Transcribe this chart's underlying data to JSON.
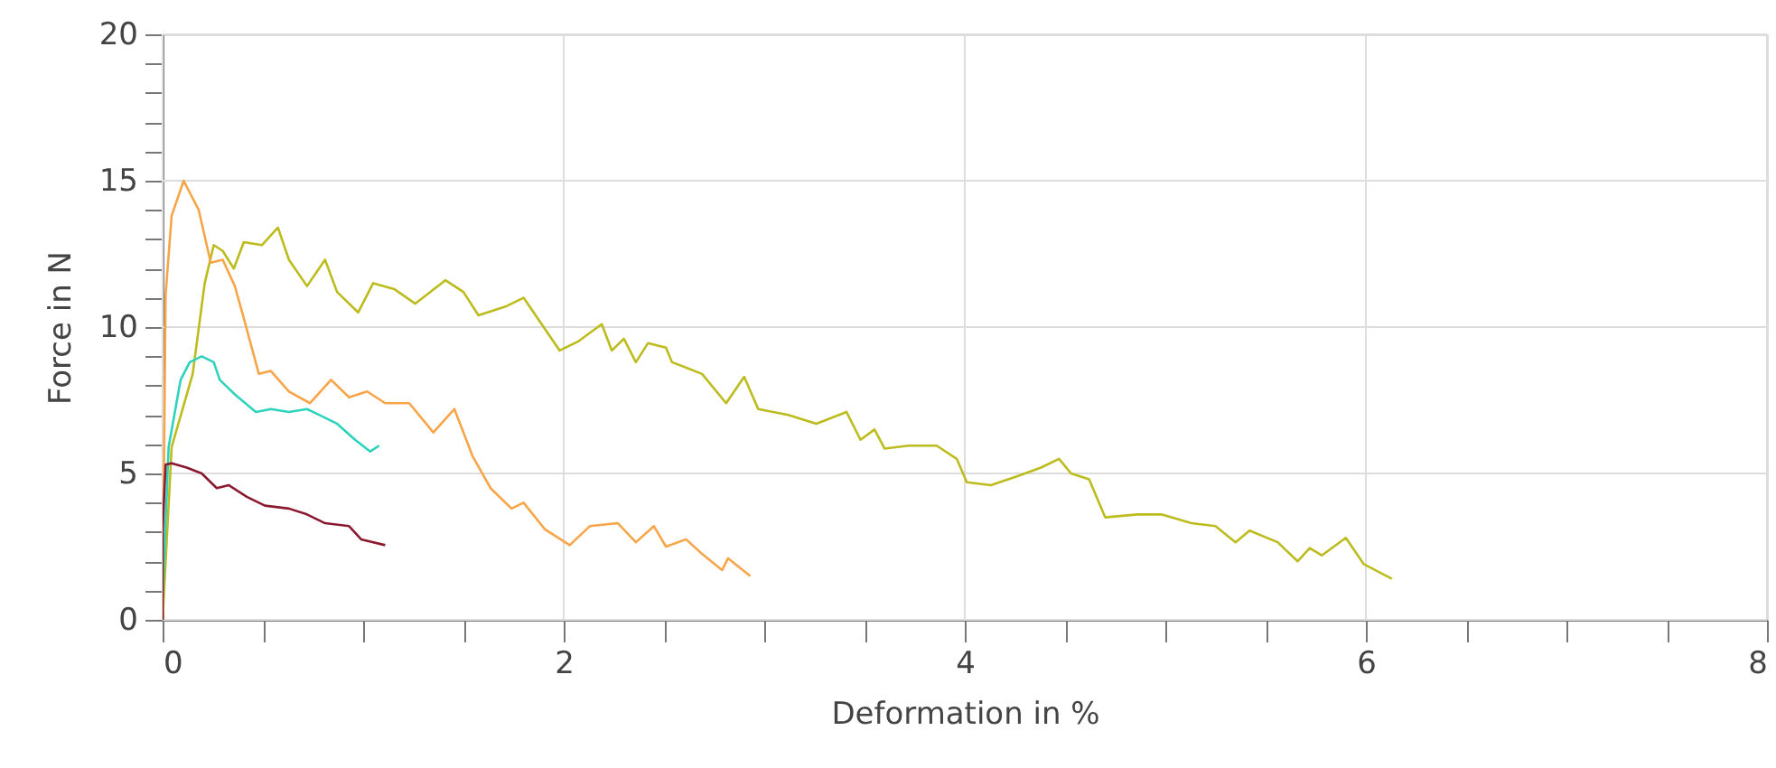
{
  "chart_data": {
    "type": "line",
    "xlabel": "Deformation in %",
    "ylabel": "Force in N",
    "xlim": [
      0,
      8
    ],
    "ylim": [
      0,
      20
    ],
    "xticks": [
      0,
      {
        "value": 0.5,
        "label": null
      },
      {
        "value": 1,
        "label": null
      },
      {
        "value": 1.5,
        "label": null
      },
      2,
      {
        "value": 2.5,
        "label": null
      },
      {
        "value": 3,
        "label": null
      },
      {
        "value": 3.5,
        "label": null
      },
      4,
      {
        "value": 4.5,
        "label": null
      },
      {
        "value": 5,
        "label": null
      },
      {
        "value": 5.5,
        "label": null
      },
      6,
      {
        "value": 6.5,
        "label": null
      },
      {
        "value": 7,
        "label": null
      },
      {
        "value": 7.5,
        "label": null
      },
      8
    ],
    "yticks": [
      0,
      {
        "value": 1,
        "label": null
      },
      {
        "value": 2,
        "label": null
      },
      {
        "value": 3,
        "label": null
      },
      {
        "value": 4,
        "label": null
      },
      5,
      {
        "value": 6,
        "label": null
      },
      {
        "value": 7,
        "label": null
      },
      {
        "value": 8,
        "label": null
      },
      {
        "value": 9,
        "label": null
      },
      10,
      {
        "value": 11,
        "label": null
      },
      {
        "value": 12,
        "label": null
      },
      {
        "value": 13,
        "label": null
      },
      {
        "value": 14,
        "label": null
      },
      15,
      {
        "value": 16,
        "label": null
      },
      {
        "value": 17,
        "label": null
      },
      {
        "value": 18,
        "label": null
      },
      {
        "value": 19,
        "label": null
      },
      20
    ],
    "grid": true,
    "marker": "none",
    "line_style": "solid",
    "series": [
      {
        "color": "#bcbc1e",
        "x": [
          0,
          0.045,
          0.15,
          0.21,
          0.255,
          0.3,
          0.355,
          0.405,
          0.495,
          0.575,
          0.63,
          0.72,
          0.81,
          0.87,
          0.975,
          1.05,
          1.155,
          1.26,
          1.41,
          1.5,
          1.575,
          1.71,
          1.8,
          1.89,
          1.98,
          2.07,
          2.19,
          2.24,
          2.3,
          2.36,
          2.42,
          2.51,
          2.54,
          2.69,
          2.81,
          2.9,
          2.97,
          3.12,
          3.26,
          3.41,
          3.48,
          3.55,
          3.6,
          3.72,
          3.86,
          3.96,
          4.01,
          4.13,
          4.26,
          4.38,
          4.47,
          4.53,
          4.62,
          4.7,
          4.86,
          4.98,
          5.13,
          5.25,
          5.35,
          5.42,
          5.56,
          5.66,
          5.72,
          5.78,
          5.9,
          5.99,
          6.13
        ],
        "values": [
          0,
          5.9,
          8.4,
          11.5,
          12.8,
          12.6,
          12.0,
          12.9,
          12.8,
          13.4,
          12.3,
          11.4,
          12.3,
          11.2,
          10.5,
          11.5,
          11.3,
          10.8,
          11.6,
          11.2,
          10.4,
          10.7,
          11.0,
          10.1,
          9.2,
          9.5,
          10.1,
          9.2,
          9.6,
          8.8,
          9.45,
          9.3,
          8.8,
          8.4,
          7.4,
          8.3,
          7.2,
          7.0,
          6.7,
          7.1,
          6.15,
          6.5,
          5.85,
          5.95,
          5.95,
          5.5,
          4.7,
          4.6,
          4.9,
          5.2,
          5.5,
          5.0,
          4.8,
          3.5,
          3.6,
          3.6,
          3.3,
          3.2,
          2.65,
          3.05,
          2.65,
          2.0,
          2.45,
          2.2,
          2.8,
          1.9,
          1.4
        ]
      },
      {
        "color": "#f8a548",
        "x": [
          0,
          0.015,
          0.045,
          0.105,
          0.18,
          0.21,
          0.24,
          0.3,
          0.36,
          0.405,
          0.48,
          0.54,
          0.63,
          0.735,
          0.84,
          0.93,
          1.02,
          1.11,
          1.23,
          1.35,
          1.455,
          1.545,
          1.635,
          1.74,
          1.8,
          1.905,
          2.03,
          2.13,
          2.27,
          2.36,
          2.45,
          2.51,
          2.61,
          2.69,
          2.79,
          2.82,
          2.93
        ],
        "values": [
          0,
          11.1,
          13.8,
          15.0,
          14.0,
          13.1,
          12.2,
          12.3,
          11.4,
          10.3,
          8.4,
          8.5,
          7.8,
          7.4,
          8.2,
          7.6,
          7.8,
          7.4,
          7.4,
          6.4,
          7.2,
          5.6,
          4.5,
          3.8,
          4.0,
          3.1,
          2.55,
          3.2,
          3.3,
          2.65,
          3.2,
          2.5,
          2.75,
          2.25,
          1.7,
          2.1,
          1.5
        ]
      },
      {
        "color": "#2ed3bc",
        "x": [
          0,
          0.03,
          0.09,
          0.135,
          0.195,
          0.255,
          0.285,
          0.36,
          0.465,
          0.54,
          0.63,
          0.72,
          0.78,
          0.87,
          0.96,
          1.035,
          1.08
        ],
        "values": [
          0.8,
          5.9,
          8.2,
          8.8,
          9.0,
          8.8,
          8.2,
          7.7,
          7.1,
          7.2,
          7.1,
          7.2,
          7.0,
          6.7,
          6.15,
          5.75,
          5.95
        ]
      },
      {
        "color": "#8b1a30",
        "x": [
          0,
          0.0,
          0.015,
          0.045,
          0.12,
          0.195,
          0.27,
          0.33,
          0.42,
          0.51,
          0.63,
          0.72,
          0.81,
          0.93,
          0.99,
          1.11
        ],
        "values": [
          0,
          3.1,
          5.3,
          5.35,
          5.2,
          5.0,
          4.5,
          4.6,
          4.2,
          3.9,
          3.8,
          3.6,
          3.3,
          3.2,
          2.75,
          2.55
        ]
      }
    ]
  }
}
